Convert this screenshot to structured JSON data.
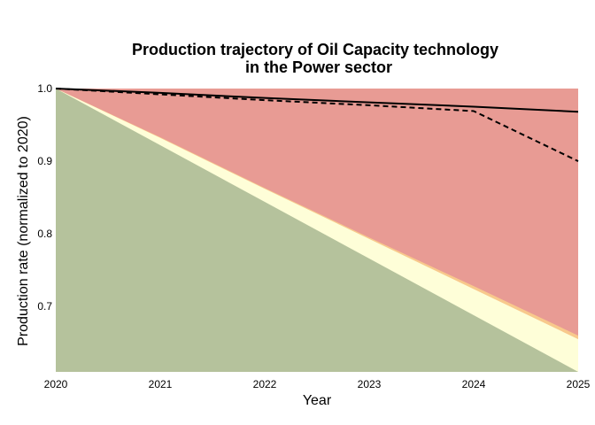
{
  "chart_data": {
    "type": "area",
    "title_lines": [
      "Production trajectory of Oil Capacity technology",
      "in the Power sector"
    ],
    "xlabel": "Year",
    "ylabel": "Production rate (normalized to 2020)",
    "x": [
      2020,
      2021,
      2022,
      2023,
      2024,
      2025
    ],
    "x_tick_labels": [
      "2020",
      "2021",
      "2022",
      "2023",
      "2024",
      "2025"
    ],
    "y_ticks": [
      1.0,
      0.9,
      0.8,
      0.7
    ],
    "y_tick_labels": [
      "1.0",
      "0.9",
      "0.8",
      "0.7"
    ],
    "xlim": [
      2020,
      2025
    ],
    "ylim": [
      0.61,
      1.0
    ],
    "grid": false,
    "legend": "none",
    "bands": [
      {
        "color": "#b5c29c",
        "values": [
          1.0,
          0.922,
          0.844,
          0.766,
          0.688,
          0.61
        ]
      },
      {
        "color": "#fefed8",
        "values": [
          1.0,
          0.932,
          0.862,
          0.793,
          0.724,
          0.655
        ]
      },
      {
        "color": "#f8c98c",
        "values": [
          1.0,
          0.933,
          0.863,
          0.795,
          0.728,
          0.66
        ]
      },
      {
        "color": "#e89b94",
        "values": [
          1.0,
          1.0,
          1.0,
          1.0,
          1.0,
          1.0
        ]
      }
    ],
    "series": [
      {
        "style": "solid",
        "color": "#000000",
        "values": [
          1.0,
          0.994,
          0.987,
          0.981,
          0.975,
          0.968
        ]
      },
      {
        "style": "dashed",
        "color": "#000000",
        "values": [
          1.0,
          0.992,
          0.984,
          0.977,
          0.969,
          0.9
        ]
      }
    ]
  }
}
